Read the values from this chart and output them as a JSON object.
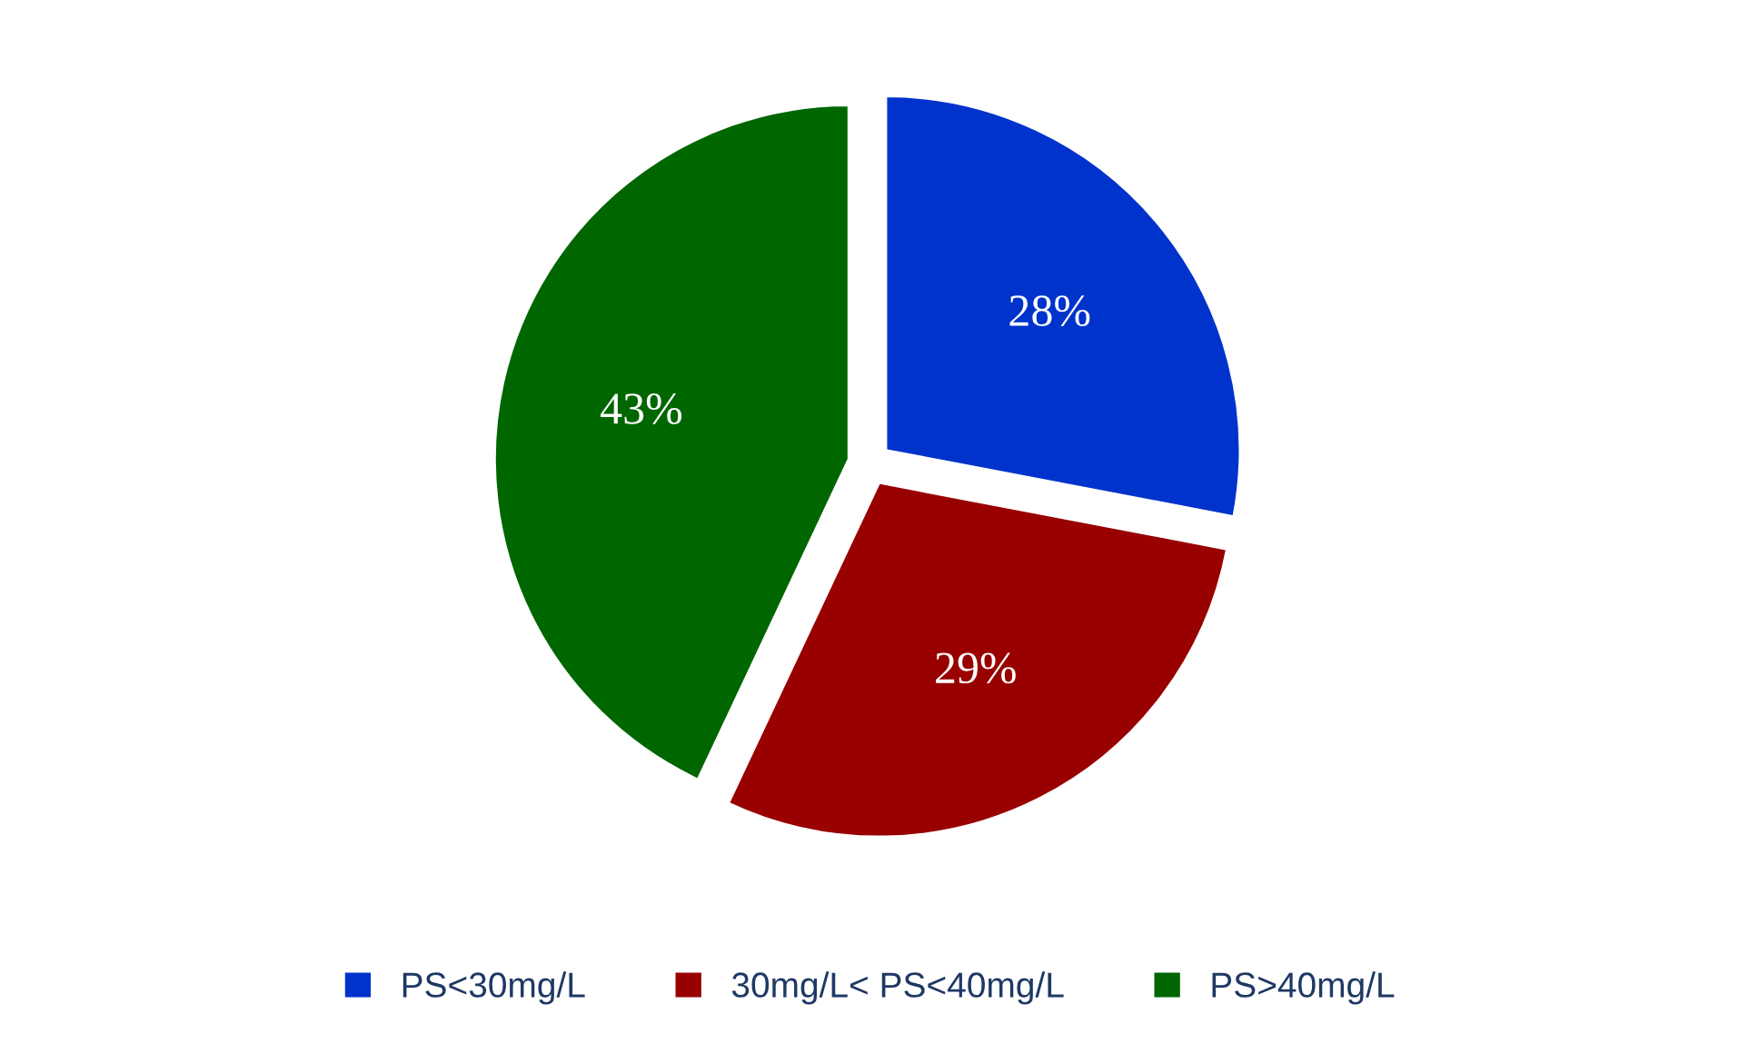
{
  "chart_data": {
    "type": "pie",
    "categories": [
      "PS<30mg/L",
      "30mg/L< PS<40mg/L",
      "PS>40mg/L"
    ],
    "values": [
      28,
      29,
      43
    ],
    "colors": [
      "#0033cc",
      "#990000",
      "#006600"
    ],
    "value_labels": [
      "28%",
      "29%",
      "43%"
    ],
    "legend": "bottom"
  }
}
